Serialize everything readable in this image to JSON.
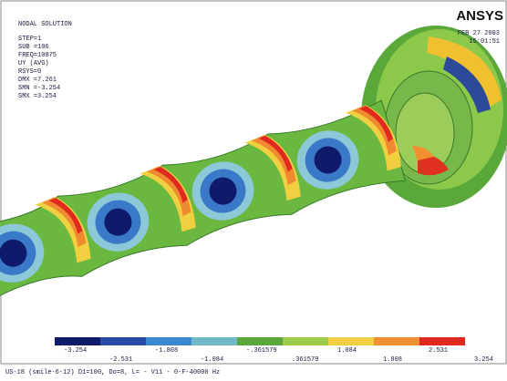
{
  "header": {
    "title": "NODAL SOLUTION",
    "lines": [
      "STEP=1",
      "SUB =106",
      "FREQ=10875",
      "UY       (AVG)",
      "RSYS=0",
      "DMX =7.261",
      "SMN =-3.254",
      "SMX =3.254"
    ]
  },
  "logo": "ANSYS",
  "date": "FEB 27 2003",
  "time": "15:01:51",
  "legend": {
    "labels_top": [
      "-3.254",
      "-1.808",
      "-.361579",
      "1.084",
      "2.531"
    ],
    "labels_bottom": [
      "-2.531",
      "-1.084",
      ".361579",
      "1.808",
      "3.254"
    ]
  },
  "caption": "US-18 (smile-6-12) D1=100, Do=8, L= - V11 - 0-F-40000 Hz"
}
